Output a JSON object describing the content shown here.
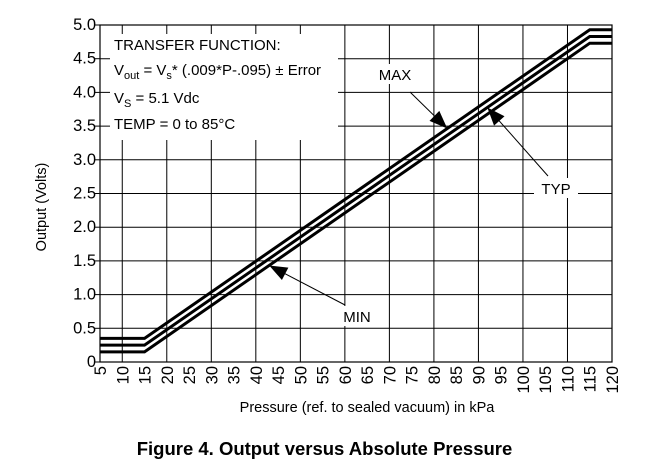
{
  "chart_data": {
    "type": "line",
    "xlabel": "Pressure (ref. to sealed vacuum) in kPa",
    "ylabel": "Output (Volts)",
    "caption": "Figure 4. Output versus Absolute Pressure",
    "xlim": [
      5,
      120
    ],
    "ylim": [
      0,
      5.0
    ],
    "x_ticks": [
      "5",
      "10",
      "15",
      "20",
      "25",
      "30",
      "35",
      "40",
      "45",
      "50",
      "55",
      "60",
      "65",
      "70",
      "75",
      "80",
      "85",
      "90",
      "95",
      "100",
      "105",
      "110",
      "115",
      "120"
    ],
    "y_ticks": [
      "0",
      "0.5",
      "1.0",
      "1.5",
      "2.0",
      "2.5",
      "3.0",
      "3.5",
      "4.0",
      "4.5",
      "5.0"
    ],
    "grid": true,
    "series": [
      {
        "name": "MAX",
        "x": [
          5,
          15,
          115,
          120
        ],
        "y": [
          0.35,
          0.35,
          4.93,
          4.93
        ]
      },
      {
        "name": "TYP",
        "x": [
          5,
          15,
          115,
          120
        ],
        "y": [
          0.25,
          0.25,
          4.83,
          4.83
        ]
      },
      {
        "name": "MIN",
        "x": [
          5,
          15,
          115,
          120
        ],
        "y": [
          0.15,
          0.15,
          4.73,
          4.73
        ]
      }
    ],
    "annotations": {
      "transfer_function_title": "TRANSFER FUNCTION:",
      "vout_main": "V",
      "vout_sub": "out",
      "vout_mid": " = V",
      "vout_sub2": "s",
      "vout_rest": "* (.009*P-.095) ± Error",
      "vs_main": "V",
      "vs_sub": "S",
      "vs_rest": " = 5.1 Vdc",
      "temp": "TEMP = 0 to 85°C"
    }
  }
}
